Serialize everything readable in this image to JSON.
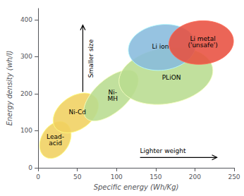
{
  "chart_data": {
    "type": "ellipse",
    "xlabel": "Specific energy (Wh/Kg)",
    "ylabel": "Energy density (wh/l)",
    "xlim": [
      0,
      250
    ],
    "ylim": [
      0,
      430
    ],
    "xticks": [
      0,
      50,
      100,
      150,
      200,
      250
    ],
    "yticks": [
      0,
      100,
      200,
      300,
      400
    ],
    "grid": false,
    "ellipses": [
      {
        "name": "Lead-\nacid",
        "cx": 22,
        "cy": 75,
        "width": 38,
        "height": 100,
        "angle": -8,
        "color": "#f0d060",
        "label_x": 22,
        "label_y": 75
      },
      {
        "name": "Ni-Cd",
        "cx": 48,
        "cy": 148,
        "width": 52,
        "height": 110,
        "angle": -15,
        "color": "#f0d060",
        "label_x": 50,
        "label_y": 150
      },
      {
        "name": "Ni-\nMH",
        "cx": 93,
        "cy": 195,
        "width": 52,
        "height": 145,
        "angle": -20,
        "color": "#b8dc90",
        "label_x": 95,
        "label_y": 195
      },
      {
        "name": "PLiON",
        "cx": 163,
        "cy": 248,
        "width": 115,
        "height": 158,
        "angle": -18,
        "color": "#b8dc90",
        "label_x": 170,
        "label_y": 243
      },
      {
        "name": "Li ion",
        "cx": 158,
        "cy": 325,
        "width": 85,
        "height": 125,
        "angle": -8,
        "color": "#88bbdd",
        "label_x": 156,
        "label_y": 328
      },
      {
        "name": "Li metal\n('unsafe')",
        "cx": 208,
        "cy": 338,
        "width": 82,
        "height": 118,
        "angle": -5,
        "color": "#e85040",
        "label_x": 210,
        "label_y": 340
      }
    ],
    "annotations": [
      {
        "text": "Smaller size",
        "x1": 57,
        "y1": 205,
        "x2": 57,
        "y2": 385,
        "label_x": 63,
        "label_y": 295
      },
      {
        "text": "Lighter weight",
        "x1": 130,
        "y1": 28,
        "x2": 228,
        "label_x": 130,
        "label_y": 38
      }
    ]
  }
}
